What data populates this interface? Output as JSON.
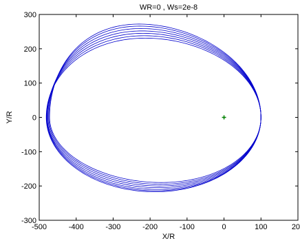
{
  "chart_data": {
    "type": "line",
    "title": "WR=0  , Ws=2e-8",
    "xlabel": "X/R",
    "ylabel": "Y/R",
    "xlim": [
      -500,
      200
    ],
    "ylim": [
      -300,
      300
    ],
    "x_ticks": [
      "-500",
      "-400",
      "-300",
      "-200",
      "-100",
      "0",
      "100",
      "200"
    ],
    "y_ticks": [
      "300",
      "200",
      "100",
      "0",
      "-100",
      "-200",
      "-300"
    ],
    "grid": false,
    "legend": "none",
    "series": [
      {
        "style": "orbit-ellipses",
        "color": "#0000cc",
        "periapsis_x": 100,
        "precessing_orbits": [
          {
            "apoapsis_x": -472,
            "y_max": 272,
            "y_min": -190,
            "top_peak_x": -230,
            "bottom_peak_x": -170
          },
          {
            "apoapsis_x": -474,
            "y_max": 266,
            "y_min": -195,
            "top_peak_x": -228,
            "bottom_peak_x": -172
          },
          {
            "apoapsis_x": -476,
            "y_max": 259,
            "y_min": -200,
            "top_peak_x": -225,
            "bottom_peak_x": -175
          },
          {
            "apoapsis_x": -478,
            "y_max": 252,
            "y_min": -205,
            "top_peak_x": -222,
            "bottom_peak_x": -178
          },
          {
            "apoapsis_x": -479,
            "y_max": 245,
            "y_min": -210,
            "top_peak_x": -219,
            "bottom_peak_x": -181
          },
          {
            "apoapsis_x": -480,
            "y_max": 238,
            "y_min": -214,
            "top_peak_x": -216,
            "bottom_peak_x": -184
          },
          {
            "apoapsis_x": -481,
            "y_max": 231,
            "y_min": -217,
            "top_peak_x": -213,
            "bottom_peak_x": -187
          }
        ]
      },
      {
        "style": "marker",
        "marker": "+",
        "color": "#008000",
        "x": [
          0
        ],
        "y": [
          0
        ]
      }
    ]
  }
}
